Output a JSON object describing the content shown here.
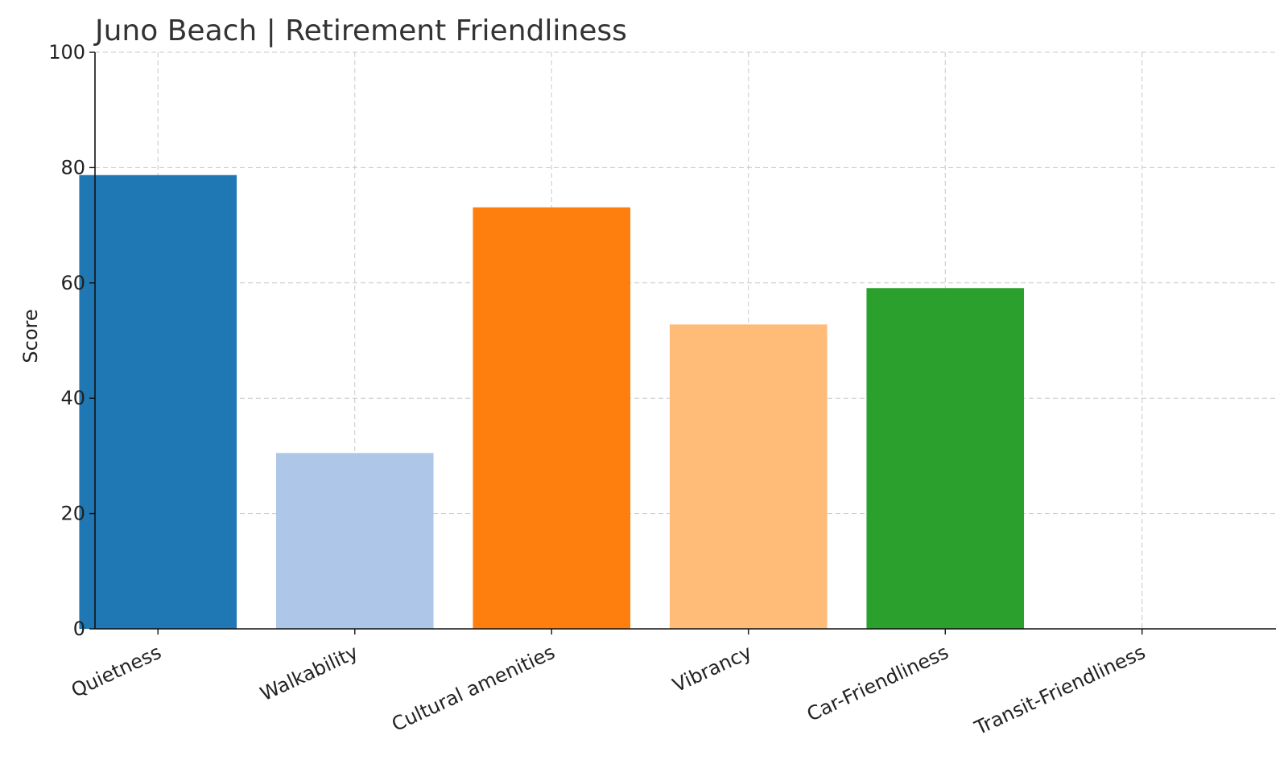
{
  "chart_data": {
    "type": "bar",
    "title": "Juno Beach | Retirement Friendliness",
    "xlabel": "",
    "ylabel": "Score",
    "ylim": [
      0,
      100
    ],
    "yticks": [
      0,
      20,
      40,
      60,
      80,
      100
    ],
    "grid": true,
    "categories": [
      "Quietness",
      "Walkability",
      "Cultural amenities",
      "Vibrancy",
      "Car-Friendliness",
      "Transit-Friendliness"
    ],
    "values": [
      78.7,
      30.5,
      73.1,
      52.8,
      59.1,
      0
    ],
    "colors": [
      "#1f77b4",
      "#aec7e8",
      "#ff7f0e",
      "#ffbb78",
      "#2ca02c",
      "#98df8a"
    ]
  }
}
